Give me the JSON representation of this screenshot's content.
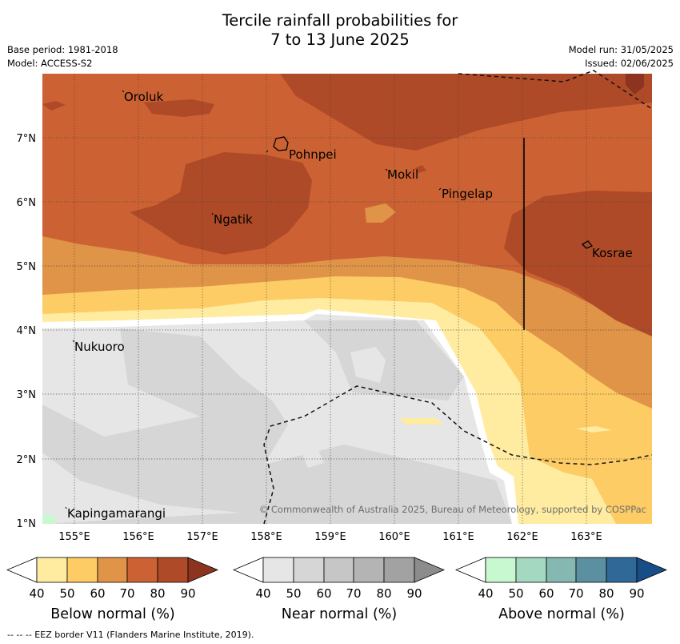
{
  "title_line1": "Tercile rainfall probabilities for",
  "title_line2": "7 to 13 June 2025",
  "left_meta": {
    "base_period": "Base period: 1981-2018",
    "model": "Model: ACCESS-S2"
  },
  "right_meta": {
    "model_run": "Model run: 31/05/2025",
    "issued": "Issued: 02/06/2025"
  },
  "copyright": "© Commonwealth of Australia 2025, Bureau of Meteorology, supported by COSPPac",
  "lon_ticks": [
    "155°E",
    "156°E",
    "157°E",
    "158°E",
    "159°E",
    "160°E",
    "161°E",
    "162°E",
    "163°E"
  ],
  "lat_ticks": [
    "7°N",
    "6°N",
    "5°N",
    "4°N",
    "3°N",
    "2°N",
    "1°N"
  ],
  "places": [
    {
      "name": "Oroluk"
    },
    {
      "name": "Pohnpei"
    },
    {
      "name": "Mokil"
    },
    {
      "name": "Pingelap"
    },
    {
      "name": "Ngatik"
    },
    {
      "name": "Kosrae"
    },
    {
      "name": "Nukuoro"
    },
    {
      "name": "Kapingamarangi"
    }
  ],
  "colorbars": [
    {
      "title": "Below normal (%)",
      "ticks": [
        "40",
        "50",
        "60",
        "70",
        "80",
        "90"
      ],
      "colors": [
        "#ffffff",
        "#ffeca0",
        "#fdcc65",
        "#e09448",
        "#cc6233",
        "#ae4a27",
        "#8c3420"
      ]
    },
    {
      "title": "Near normal (%)",
      "ticks": [
        "40",
        "50",
        "60",
        "70",
        "80",
        "90"
      ],
      "colors": [
        "#ffffff",
        "#e6e6e6",
        "#d6d6d6",
        "#c6c6c6",
        "#b4b4b4",
        "#a2a2a2",
        "#8c8c8c"
      ]
    },
    {
      "title": "Above normal (%)",
      "ticks": [
        "40",
        "50",
        "60",
        "70",
        "80",
        "90"
      ],
      "colors": [
        "#ffffff",
        "#c8f8d0",
        "#a4d8c0",
        "#84b8b0",
        "#5a90a0",
        "#306898",
        "#184e88"
      ]
    }
  ],
  "footer": "-- -- -- EEZ border V11 (Flanders Marine Institute, 2019)."
}
